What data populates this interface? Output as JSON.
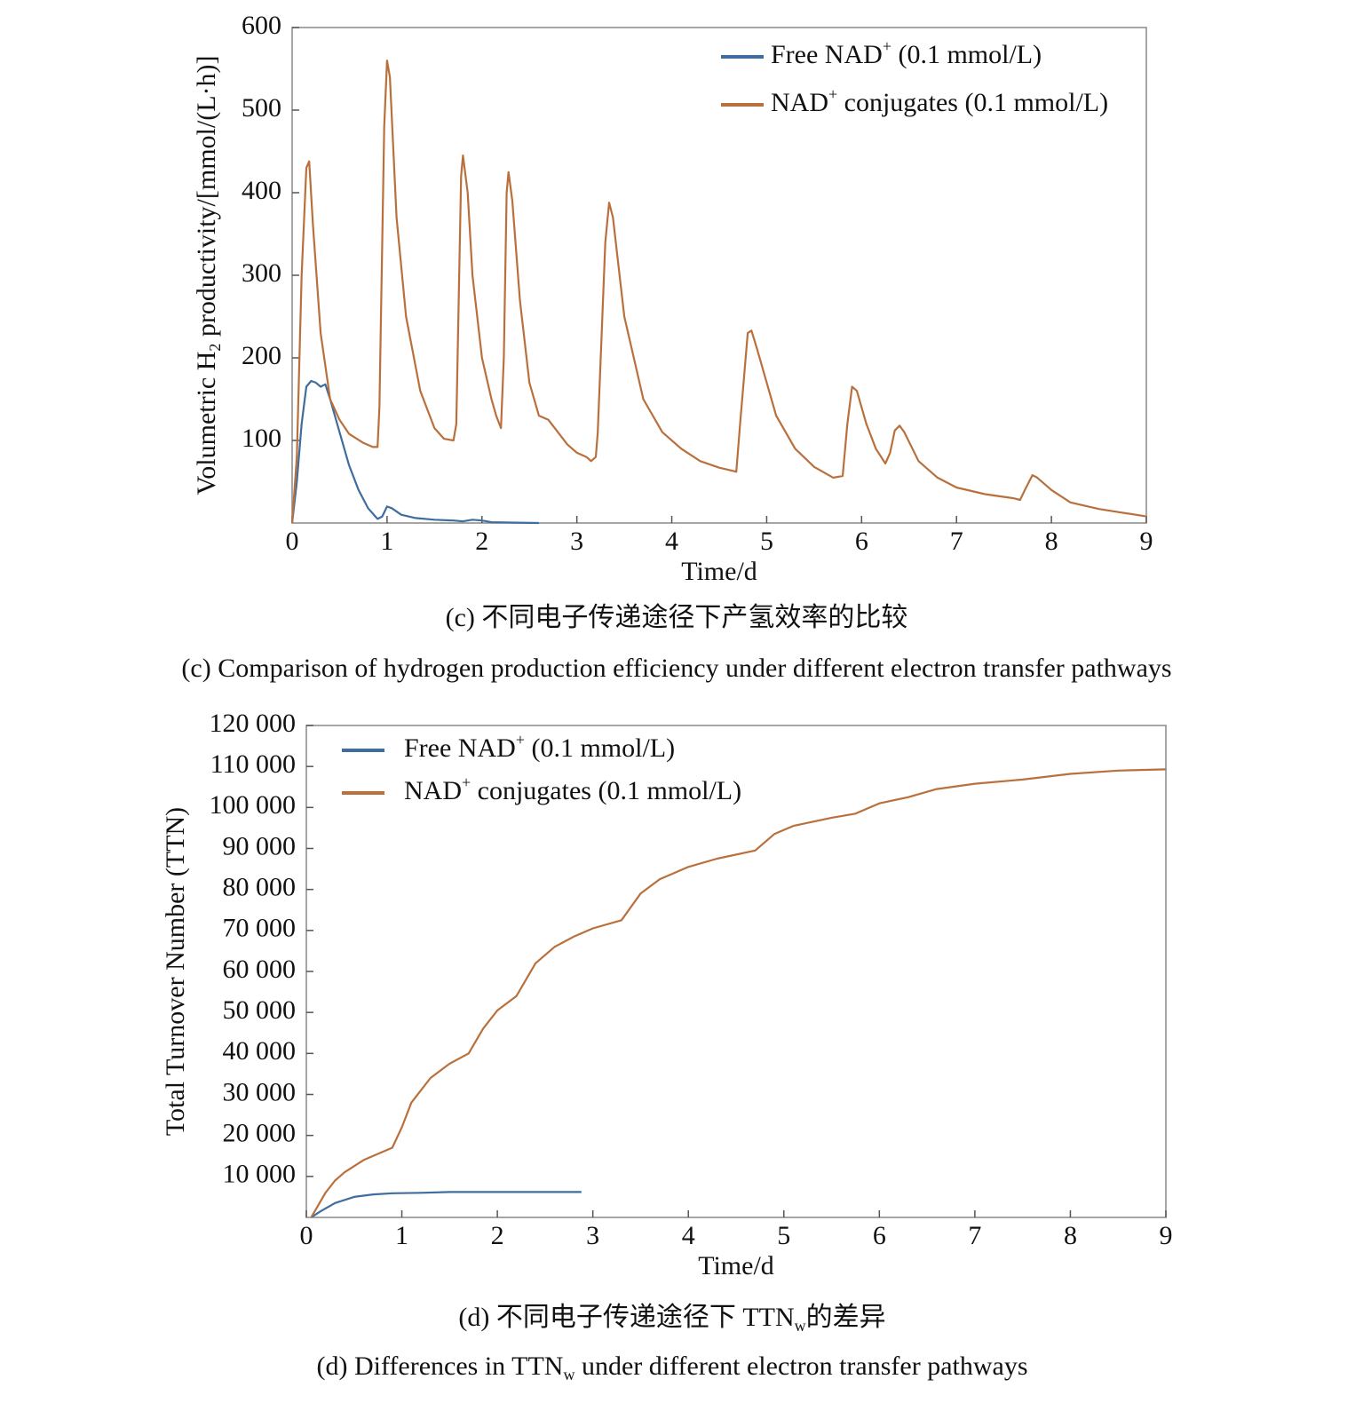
{
  "chart_data": [
    {
      "type": "line",
      "xlabel": "Time/d",
      "ylabel": [
        "Volumetric H",
        "2",
        " productivity/[mmol/(L·h)]"
      ],
      "caption_zh": "(c) 不同电子传递途径下产氢效率的比较",
      "caption_en": "(c) Comparison of hydrogen production efficiency under different electron transfer pathways",
      "xlim": [
        0,
        9
      ],
      "xticks": [
        0,
        1,
        2,
        3,
        4,
        5,
        6,
        7,
        8,
        9
      ],
      "ylim": [
        0,
        600
      ],
      "yticks": [
        100,
        200,
        300,
        400,
        500,
        600
      ],
      "legend": "upper right",
      "series": [
        {
          "name": [
            "Free NAD",
            "+",
            " (0.1 mmol/L)"
          ],
          "color": "#3f6d9e",
          "text_color": "#3b5f8c",
          "x": [
            0,
            0.05,
            0.1,
            0.15,
            0.2,
            0.25,
            0.3,
            0.35,
            0.4,
            0.5,
            0.6,
            0.7,
            0.8,
            0.9,
            0.95,
            1.0,
            1.05,
            1.15,
            1.3,
            1.5,
            1.7,
            1.8,
            1.9,
            2.0,
            2.1,
            2.3,
            2.6
          ],
          "values": [
            0,
            50,
            120,
            165,
            172,
            170,
            165,
            168,
            150,
            110,
            70,
            40,
            18,
            5,
            8,
            20,
            18,
            10,
            6,
            4,
            3,
            2,
            4,
            3,
            1,
            0.5,
            0
          ]
        },
        {
          "name": [
            "NAD",
            "+",
            " conjugates (0.1 mmol/L)"
          ],
          "color": "#b9703c",
          "text_color": "#8b4a2b",
          "x": [
            0,
            0.05,
            0.1,
            0.15,
            0.18,
            0.22,
            0.3,
            0.4,
            0.5,
            0.6,
            0.75,
            0.85,
            0.9,
            0.92,
            0.97,
            1.0,
            1.03,
            1.1,
            1.2,
            1.35,
            1.5,
            1.6,
            1.7,
            1.73,
            1.78,
            1.8,
            1.85,
            1.9,
            2.0,
            2.1,
            2.15,
            2.2,
            2.23,
            2.26,
            2.28,
            2.32,
            2.4,
            2.5,
            2.6,
            2.7,
            2.8,
            2.9,
            3.0,
            3.1,
            3.15,
            3.2,
            3.22,
            3.3,
            3.34,
            3.38,
            3.5,
            3.7,
            3.9,
            4.1,
            4.3,
            4.5,
            4.65,
            4.68,
            4.72,
            4.8,
            4.84,
            4.9,
            5.1,
            5.3,
            5.5,
            5.7,
            5.8,
            5.85,
            5.9,
            5.95,
            6.05,
            6.15,
            6.25,
            6.3,
            6.35,
            6.4,
            6.45,
            6.6,
            6.8,
            7.0,
            7.3,
            7.6,
            7.67,
            7.72,
            7.8,
            7.85,
            8.0,
            8.2,
            8.5,
            9.0
          ],
          "values": [
            0,
            80,
            300,
            430,
            438,
            360,
            230,
            150,
            125,
            108,
            97,
            92,
            92,
            140,
            480,
            560,
            540,
            370,
            250,
            160,
            115,
            102,
            100,
            120,
            420,
            445,
            400,
            300,
            200,
            150,
            130,
            115,
            200,
            400,
            425,
            390,
            270,
            170,
            130,
            125,
            110,
            95,
            85,
            80,
            75,
            80,
            110,
            340,
            388,
            370,
            250,
            150,
            110,
            90,
            75,
            67,
            63,
            62,
            120,
            230,
            233,
            210,
            130,
            90,
            68,
            55,
            57,
            120,
            165,
            160,
            120,
            90,
            72,
            85,
            112,
            118,
            110,
            75,
            55,
            43,
            35,
            30,
            28,
            40,
            58,
            55,
            40,
            25,
            17,
            8
          ]
        }
      ]
    },
    {
      "type": "line",
      "xlabel": "Time/d",
      "ylabel": [
        "Total Turnover Number (TTN)"
      ],
      "caption_zh": [
        "(d) 不同电子传递途径下 TTN",
        "w",
        "的差异"
      ],
      "caption_en": [
        "(d) Differences in TTN",
        "w",
        " under different electron transfer pathways"
      ],
      "xlim": [
        0,
        9
      ],
      "xticks": [
        0,
        1,
        2,
        3,
        4,
        5,
        6,
        7,
        8,
        9
      ],
      "ylim": [
        0,
        120000
      ],
      "yticks": [
        {
          "value": 10000,
          "label": "10 000"
        },
        {
          "value": 20000,
          "label": "20 000"
        },
        {
          "value": 30000,
          "label": "30 000"
        },
        {
          "value": 40000,
          "label": "40 000"
        },
        {
          "value": 50000,
          "label": "50 000"
        },
        {
          "value": 60000,
          "label": "60 000"
        },
        {
          "value": 70000,
          "label": "70 000"
        },
        {
          "value": 80000,
          "label": "80 000"
        },
        {
          "value": 90000,
          "label": "90 000"
        },
        {
          "value": 100000,
          "label": "100 000"
        },
        {
          "value": 110000,
          "label": "110 000"
        },
        {
          "value": 120000,
          "label": "120 000"
        }
      ],
      "legend": "upper left",
      "series": [
        {
          "name": [
            "Free NAD",
            "+",
            " (0.1 mmol/L)"
          ],
          "color": "#3f6d9e",
          "text_color": "#3b5f8c",
          "x": [
            0.05,
            0.15,
            0.3,
            0.5,
            0.7,
            0.9,
            1.2,
            1.5,
            2.0,
            2.88
          ],
          "values": [
            0,
            1500,
            3500,
            5000,
            5600,
            5900,
            6000,
            6200,
            6200,
            6200
          ]
        },
        {
          "name": [
            "NAD",
            "+",
            " conjugates (0.1 mmol/L)"
          ],
          "color": "#b9703c",
          "text_color": "#8b4a2b",
          "x": [
            0.05,
            0.1,
            0.2,
            0.3,
            0.4,
            0.6,
            0.8,
            0.9,
            1.0,
            1.1,
            1.3,
            1.5,
            1.7,
            1.85,
            2.0,
            2.2,
            2.3,
            2.4,
            2.6,
            2.8,
            3.0,
            3.3,
            3.5,
            3.7,
            4.0,
            4.3,
            4.7,
            4.9,
            5.1,
            5.5,
            5.75,
            6.0,
            6.3,
            6.6,
            7.0,
            7.5,
            8.0,
            8.5,
            9.0
          ],
          "values": [
            0,
            2000,
            6000,
            9000,
            11000,
            14000,
            16000,
            17000,
            22000,
            28000,
            34000,
            37500,
            40000,
            46000,
            50500,
            54000,
            58000,
            62000,
            66000,
            68500,
            70500,
            72500,
            79000,
            82500,
            85500,
            87500,
            89500,
            93500,
            95500,
            97500,
            98500,
            101000,
            102500,
            104500,
            105800,
            106800,
            108200,
            109000,
            109300
          ]
        }
      ]
    }
  ]
}
